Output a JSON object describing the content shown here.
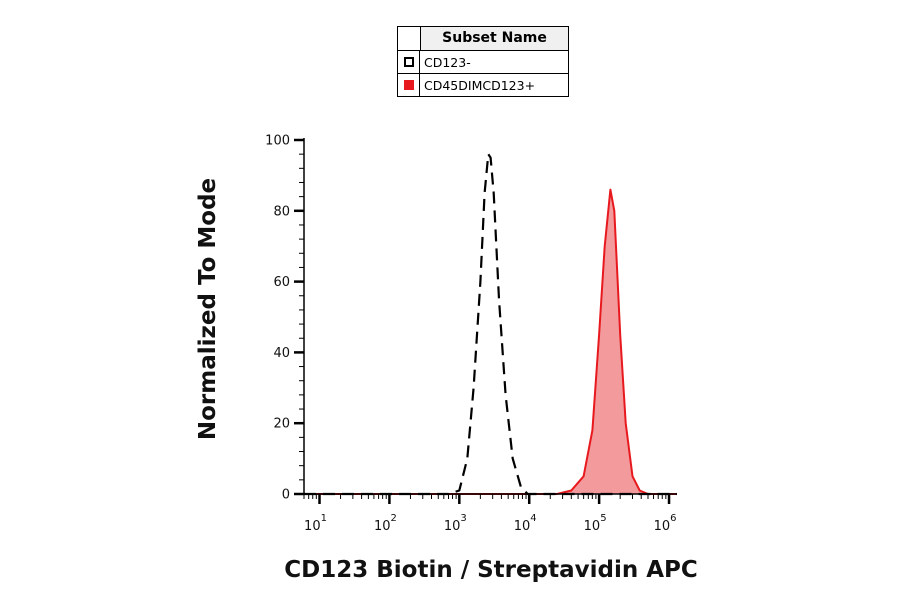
{
  "legend": {
    "header": "Subset Name",
    "items": [
      {
        "label": "CD123-",
        "style": "dashed-outline",
        "color": "#000000"
      },
      {
        "label": "CD45DIMCD123+",
        "style": "filled",
        "color": "#e8191e"
      }
    ]
  },
  "chart_data": {
    "type": "area",
    "xlabel": "CD123 Biotin / Streptavidin APC",
    "ylabel": "Normalized To Mode",
    "x_scale": "log",
    "xlim": [
      6,
      1300000
    ],
    "ylim": [
      0,
      100
    ],
    "x_ticks": [
      "10^1",
      "10^2",
      "10^3",
      "10^4",
      "10^5",
      "10^6"
    ],
    "y_ticks": [
      "0",
      "20",
      "40",
      "60",
      "80",
      "100"
    ],
    "series": [
      {
        "name": "CD123-",
        "color": "#000000",
        "style": "dashed",
        "points": [
          [
            6,
            0
          ],
          [
            700,
            0
          ],
          [
            1000,
            1
          ],
          [
            1300,
            10
          ],
          [
            1600,
            30
          ],
          [
            2000,
            60
          ],
          [
            2300,
            85
          ],
          [
            2600,
            96
          ],
          [
            2800,
            95
          ],
          [
            3100,
            85
          ],
          [
            3700,
            55
          ],
          [
            4600,
            28
          ],
          [
            5800,
            10
          ],
          [
            7600,
            2
          ],
          [
            9500,
            0
          ],
          [
            1300000,
            0
          ]
        ]
      },
      {
        "name": "CD45DIMCD123+",
        "color": "#e8191e",
        "fill": "#f39a9c",
        "style": "filled",
        "points": [
          [
            6,
            0
          ],
          [
            25000,
            0
          ],
          [
            40000,
            1
          ],
          [
            60000,
            5
          ],
          [
            80000,
            18
          ],
          [
            100000,
            45
          ],
          [
            120000,
            70
          ],
          [
            145000,
            86
          ],
          [
            165000,
            80
          ],
          [
            200000,
            45
          ],
          [
            240000,
            20
          ],
          [
            300000,
            5
          ],
          [
            380000,
            1
          ],
          [
            500000,
            0
          ],
          [
            1300000,
            0
          ]
        ]
      }
    ]
  }
}
